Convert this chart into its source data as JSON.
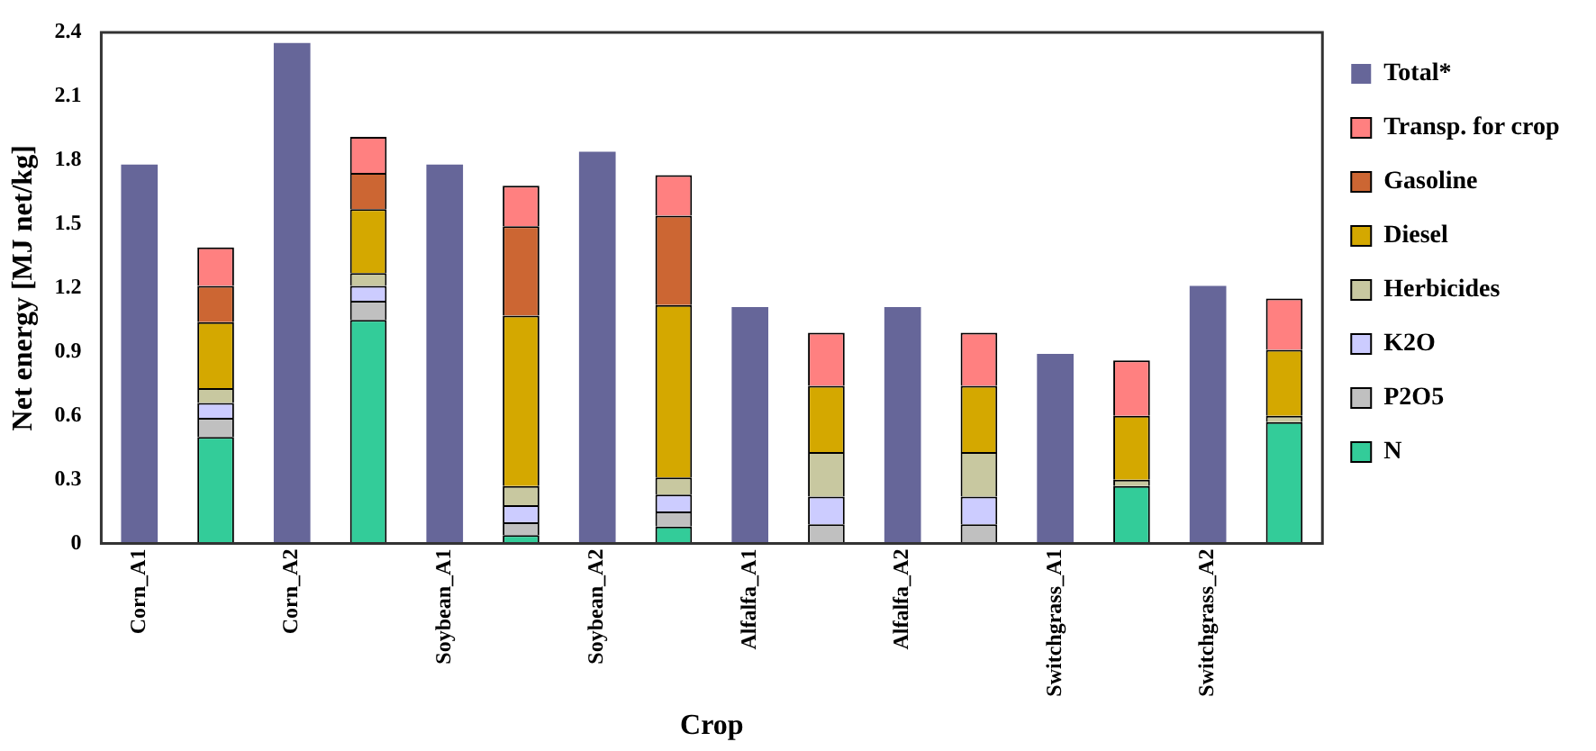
{
  "chart_data": {
    "type": "bar",
    "stacked": true,
    "xlabel": "Crop",
    "ylabel": "Net energy [MJ net/kg]",
    "categories": [
      "Corn_A1",
      null,
      "Corn_A2",
      null,
      "Soybean_A1",
      null,
      "Soybean_A2",
      null,
      "Alfalfa_A1",
      null,
      "Alfalfa_A2",
      null,
      "Switchgrass_A1",
      null,
      "Switchgrass_A2",
      null
    ],
    "series": [
      {
        "name": "Total*",
        "color": "#666699",
        "values": [
          1.78,
          null,
          2.35,
          null,
          1.78,
          null,
          1.84,
          null,
          1.11,
          null,
          1.11,
          null,
          0.89,
          null,
          1.21,
          null
        ]
      },
      {
        "name": "N",
        "color": "#33cc99",
        "values": [
          null,
          0.5,
          null,
          1.05,
          null,
          0.04,
          null,
          0.08,
          null,
          null,
          null,
          null,
          null,
          0.27,
          null,
          0.57
        ]
      },
      {
        "name": "P2O5",
        "color": "#c0c0c0",
        "values": [
          null,
          0.09,
          null,
          0.09,
          null,
          0.06,
          null,
          0.07,
          null,
          0.09,
          null,
          0.09,
          null,
          null,
          null,
          null
        ]
      },
      {
        "name": "K2O",
        "color": "#ccccff",
        "values": [
          null,
          0.07,
          null,
          0.07,
          null,
          0.08,
          null,
          0.08,
          null,
          0.13,
          null,
          0.13,
          null,
          null,
          null,
          null
        ]
      },
      {
        "name": "Herbicides",
        "color": "#c8c8a0",
        "values": [
          null,
          0.07,
          null,
          0.06,
          null,
          0.09,
          null,
          0.08,
          null,
          0.21,
          null,
          0.21,
          null,
          0.03,
          null,
          0.03
        ]
      },
      {
        "name": "Diesel",
        "color": "#d4a800",
        "values": [
          null,
          0.31,
          null,
          0.3,
          null,
          0.8,
          null,
          0.81,
          null,
          0.31,
          null,
          0.31,
          null,
          0.3,
          null,
          0.31
        ]
      },
      {
        "name": "Gasoline",
        "color": "#cc6633",
        "values": [
          null,
          0.17,
          null,
          0.17,
          null,
          0.42,
          null,
          0.42,
          null,
          null,
          null,
          null,
          null,
          null,
          null,
          null
        ]
      },
      {
        "name": "Transp. for crop",
        "color": "#ff8080",
        "values": [
          null,
          0.18,
          null,
          0.17,
          null,
          0.19,
          null,
          0.19,
          null,
          0.25,
          null,
          0.25,
          null,
          0.26,
          null,
          0.24
        ]
      }
    ],
    "ylim": [
      0,
      2.4
    ],
    "yticks": [
      0,
      0.3,
      0.6,
      0.9,
      1.2,
      1.5,
      1.8,
      2.1,
      2.4
    ],
    "grid": false,
    "legend": "right"
  }
}
